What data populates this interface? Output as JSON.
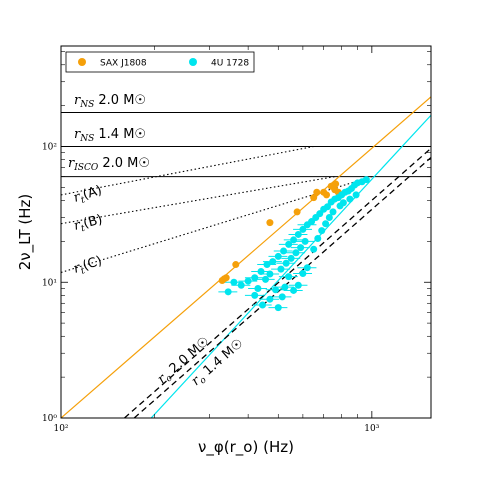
{
  "chart_data": {
    "type": "scatter",
    "xlabel": "ν_φ(r_o) (Hz)",
    "ylabel": "2ν_LT (Hz)",
    "x_scale": "log",
    "y_scale": "log",
    "xlim": [
      100,
      1550
    ],
    "ylim": [
      1,
      550
    ],
    "x_ticks": [
      {
        "value": 100,
        "label": "10²"
      },
      {
        "value": 1000,
        "label": "10³"
      }
    ],
    "y_ticks": [
      {
        "value": 1,
        "label": "10⁰"
      },
      {
        "value": 10,
        "label": "10¹"
      },
      {
        "value": 100,
        "label": "10²"
      }
    ],
    "legend": {
      "position": "top-left",
      "entries": [
        {
          "label": "SAX J1808",
          "color": "#f5a00a"
        },
        {
          "label": "4U 1728",
          "color": "#00e5ee"
        }
      ]
    },
    "series": [
      {
        "name": "SAX J1808",
        "color": "#f5a00a",
        "points": [
          [
            330,
            10.3
          ],
          [
            335,
            10.6
          ],
          [
            340,
            10.8
          ],
          [
            365,
            13.5
          ],
          [
            470,
            27.5
          ],
          [
            575,
            33
          ],
          [
            650,
            42
          ],
          [
            665,
            46
          ],
          [
            700,
            46
          ],
          [
            715,
            44
          ],
          [
            740,
            51
          ],
          [
            760,
            48
          ],
          [
            765,
            53
          ],
          [
            780,
            46
          ]
        ]
      },
      {
        "name": "4U 1728",
        "color": "#00e5ee",
        "points": [
          [
            345,
            8.5
          ],
          [
            360,
            10
          ],
          [
            380,
            9.5
          ],
          [
            400,
            10.2
          ],
          [
            420,
            10.8
          ],
          [
            440,
            12
          ],
          [
            460,
            13.5
          ],
          [
            480,
            14.2
          ],
          [
            500,
            15.5
          ],
          [
            520,
            17
          ],
          [
            540,
            19
          ],
          [
            560,
            20.5
          ],
          [
            580,
            22.5
          ],
          [
            600,
            24.5
          ],
          [
            620,
            26.5
          ],
          [
            640,
            28
          ],
          [
            660,
            30
          ],
          [
            680,
            32
          ],
          [
            700,
            34.5
          ],
          [
            720,
            36
          ],
          [
            740,
            39
          ],
          [
            760,
            41
          ],
          [
            780,
            42
          ],
          [
            800,
            44
          ],
          [
            820,
            46
          ],
          [
            840,
            47
          ],
          [
            860,
            49
          ],
          [
            880,
            52
          ],
          [
            900,
            54
          ],
          [
            930,
            55
          ],
          [
            960,
            57
          ],
          [
            510,
            12.5
          ],
          [
            530,
            13.8
          ],
          [
            550,
            15
          ],
          [
            570,
            16.5
          ],
          [
            590,
            18
          ],
          [
            610,
            20
          ],
          [
            470,
            11.5
          ],
          [
            455,
            10.5
          ],
          [
            540,
            11
          ],
          [
            420,
            8
          ],
          [
            430,
            9
          ],
          [
            445,
            6.8
          ],
          [
            470,
            7.5
          ],
          [
            490,
            8.8
          ],
          [
            500,
            6.5
          ],
          [
            515,
            7.8
          ],
          [
            525,
            9.2
          ],
          [
            560,
            8.7
          ],
          [
            580,
            9.5
          ],
          [
            600,
            11.6
          ],
          [
            620,
            12.8
          ],
          [
            650,
            17.5
          ],
          [
            670,
            21
          ],
          [
            690,
            24
          ],
          [
            710,
            27
          ],
          [
            730,
            30
          ],
          [
            750,
            33
          ],
          [
            790,
            36.5
          ],
          [
            810,
            38.5
          ],
          [
            850,
            41
          ],
          [
            890,
            44
          ]
        ]
      }
    ],
    "fit_lines": [
      {
        "color": "#f5a00a",
        "style": "solid",
        "points": [
          [
            100,
            1
          ],
          [
            1550,
            232
          ]
        ]
      },
      {
        "color": "#00e5ee",
        "style": "solid",
        "points": [
          [
            195,
            1
          ],
          [
            1550,
            170
          ]
        ]
      },
      {
        "label": "r_o 2.0 M☉",
        "color": "#000000",
        "style": "dashed",
        "points": [
          [
            160,
            1
          ],
          [
            1550,
            97
          ]
        ]
      },
      {
        "label": "r_o 1.4 M☉",
        "color": "#000000",
        "style": "dashed",
        "points": [
          [
            172,
            1
          ],
          [
            1550,
            83
          ]
        ]
      }
    ],
    "horizontal_lines": [
      {
        "label": "r_NS 2.0 M☉",
        "y": 178,
        "color": "#000000"
      },
      {
        "label": "r_NS 1.4 M☉",
        "y": 100,
        "color": "#000000"
      },
      {
        "label": "r_ISCO 2.0 M☉",
        "y": 60,
        "color": "#000000"
      }
    ],
    "dotted_lines": [
      {
        "label": "r_t(A)",
        "points": [
          [
            100,
            44
          ],
          [
            650,
            100
          ]
        ]
      },
      {
        "label": "r_t(B)",
        "points": [
          [
            100,
            27
          ],
          [
            760,
            60
          ]
        ]
      },
      {
        "label": "r_t(C)",
        "points": [
          [
            100,
            11.8
          ],
          [
            1000,
            60
          ]
        ]
      }
    ]
  },
  "annotations": {
    "rns20": {
      "sym": "r",
      "sub": "NS",
      "text": " 2.0 M☉"
    },
    "rns14": {
      "sym": "r",
      "sub": "NS",
      "text": " 1.4 M☉"
    },
    "risco": {
      "sym": "r",
      "sub": "ISCO",
      "text": " 2.0 M☉"
    },
    "rtA": {
      "sym": "r",
      "sub": "t",
      "text": "(A)"
    },
    "rtB": {
      "sym": "r",
      "sub": "t",
      "text": "(B)"
    },
    "rtC": {
      "sym": "r",
      "sub": "t",
      "text": "(C)"
    },
    "ro20": {
      "sym": "r",
      "sub": "o",
      "text": " 2.0 M☉"
    },
    "ro14": {
      "sym": "r",
      "sub": "o",
      "text": " 1.4 M☉"
    }
  }
}
